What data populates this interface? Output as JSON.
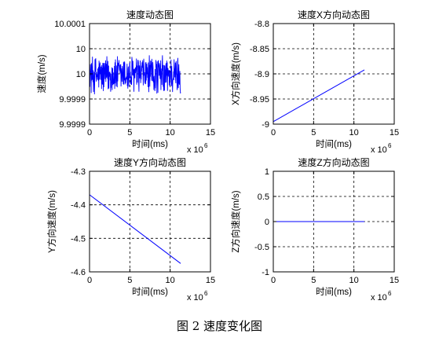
{
  "caption": "图 2  速度变化图",
  "chart_data": [
    {
      "type": "line",
      "title": "速度动态图",
      "xlabel": "时间(ms)",
      "ylabel": "速度(m/s)",
      "x_multiplier_label": "x 10",
      "x_multiplier_exp": "6",
      "xlim": [
        0,
        15
      ],
      "ylim": [
        0,
        4
      ],
      "xticks": [
        0,
        5,
        10,
        15
      ],
      "xtick_labels": [
        "0",
        "5",
        "10",
        "15"
      ],
      "yticks": [
        0,
        1,
        2,
        3,
        4
      ],
      "ytick_labels": [
        "9.9999",
        "9.9999",
        "10",
        "10",
        "10.0001"
      ],
      "grid": true,
      "line_color": "#0000ff",
      "series": [
        {
          "noise": true,
          "x_range": [
            0.05,
            11.3
          ],
          "y_center": 1.95,
          "y_band": [
            1.1,
            2.85
          ],
          "x": [],
          "values": []
        }
      ]
    },
    {
      "type": "line",
      "title": "速度X方向动态图",
      "xlabel": "时间(ms)",
      "ylabel": "X方向速度(m/s)",
      "x_multiplier_label": "x 10",
      "x_multiplier_exp": "6",
      "xlim": [
        0,
        15
      ],
      "ylim": [
        -9.0,
        -8.8
      ],
      "xticks": [
        0,
        5,
        10,
        15
      ],
      "xtick_labels": [
        "0",
        "5",
        "10",
        "15"
      ],
      "yticks": [
        -9.0,
        -8.95,
        -8.9,
        -8.85,
        -8.8
      ],
      "ytick_labels": [
        "-9",
        "-8.95",
        "-8.9",
        "-8.85",
        "-8.8"
      ],
      "grid": true,
      "line_color": "#0000ff",
      "series": [
        {
          "x": [
            0,
            11.3
          ],
          "values": [
            -8.995,
            -8.892
          ]
        }
      ]
    },
    {
      "type": "line",
      "title": "速度Y方向动态图",
      "xlabel": "时间(ms)",
      "ylabel": "Y方向速度(m/s)",
      "x_multiplier_label": "x 10",
      "x_multiplier_exp": "6",
      "xlim": [
        0,
        15
      ],
      "ylim": [
        -4.6,
        -4.3
      ],
      "xticks": [
        0,
        5,
        10,
        15
      ],
      "xtick_labels": [
        "0",
        "5",
        "10",
        "15"
      ],
      "yticks": [
        -4.6,
        -4.5,
        -4.4,
        -4.3
      ],
      "ytick_labels": [
        "-4.6",
        "-4.5",
        "-4.4",
        "-4.3"
      ],
      "grid": true,
      "line_color": "#0000ff",
      "series": [
        {
          "x": [
            0,
            11.3
          ],
          "values": [
            -4.37,
            -4.575
          ]
        }
      ]
    },
    {
      "type": "line",
      "title": "速度Z方向动态图",
      "xlabel": "时间(ms)",
      "ylabel": "Z方向速度(m/s)",
      "x_multiplier_label": "x 10",
      "x_multiplier_exp": "6",
      "xlim": [
        0,
        15
      ],
      "ylim": [
        -1,
        1
      ],
      "xticks": [
        0,
        5,
        10,
        15
      ],
      "xtick_labels": [
        "0",
        "5",
        "10",
        "15"
      ],
      "yticks": [
        -1,
        -0.5,
        0,
        0.5,
        1
      ],
      "ytick_labels": [
        "-1",
        "-0.5",
        "0",
        "0.5",
        "1"
      ],
      "grid": true,
      "line_color": "#0000ff",
      "series": [
        {
          "x": [
            0,
            11.3
          ],
          "values": [
            0,
            0
          ]
        }
      ]
    }
  ]
}
